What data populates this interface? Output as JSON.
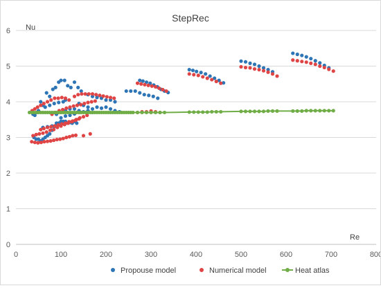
{
  "chart_data": {
    "type": "scatter",
    "title": "StepRec",
    "xlabel": "Re",
    "ylabel": "Nu",
    "xlim": [
      0,
      800
    ],
    "ylim": [
      0,
      6
    ],
    "xticks": [
      0,
      100,
      200,
      300,
      400,
      500,
      600,
      700,
      800
    ],
    "yticks": [
      0,
      1,
      2,
      3,
      4,
      5,
      6
    ],
    "grid": true,
    "legend_position": "bottom",
    "series": [
      {
        "name": "Propouse model",
        "color": "#2e75b6",
        "marker": "circle",
        "points": [
          [
            38,
            3.65
          ],
          [
            42,
            3.62
          ],
          [
            46,
            3.7
          ],
          [
            50,
            3.75
          ],
          [
            55,
            4.0
          ],
          [
            60,
            3.9
          ],
          [
            68,
            4.25
          ],
          [
            75,
            4.15
          ],
          [
            82,
            4.35
          ],
          [
            88,
            4.4
          ],
          [
            95,
            4.55
          ],
          [
            100,
            4.6
          ],
          [
            108,
            4.6
          ],
          [
            115,
            4.45
          ],
          [
            122,
            4.4
          ],
          [
            130,
            4.55
          ],
          [
            138,
            4.4
          ],
          [
            145,
            4.3
          ],
          [
            40,
            3.0
          ],
          [
            45,
            2.95
          ],
          [
            50,
            2.95
          ],
          [
            55,
            2.9
          ],
          [
            60,
            2.95
          ],
          [
            65,
            3.0
          ],
          [
            70,
            3.05
          ],
          [
            75,
            3.1
          ],
          [
            80,
            3.2
          ],
          [
            85,
            3.3
          ],
          [
            90,
            3.35
          ],
          [
            95,
            3.4
          ],
          [
            100,
            3.45
          ],
          [
            105,
            3.45
          ],
          [
            110,
            3.45
          ],
          [
            115,
            3.4
          ],
          [
            120,
            3.42
          ],
          [
            125,
            3.4
          ],
          [
            130,
            3.45
          ],
          [
            135,
            3.4
          ],
          [
            60,
            3.28
          ],
          [
            70,
            3.3
          ],
          [
            80,
            3.32
          ],
          [
            90,
            3.4
          ],
          [
            100,
            3.55
          ],
          [
            110,
            3.6
          ],
          [
            120,
            3.62
          ],
          [
            130,
            3.66
          ],
          [
            140,
            3.7
          ],
          [
            65,
            3.85
          ],
          [
            75,
            3.9
          ],
          [
            85,
            3.95
          ],
          [
            95,
            3.98
          ],
          [
            105,
            4.0
          ],
          [
            110,
            4.05
          ],
          [
            90,
            3.65
          ],
          [
            100,
            3.7
          ],
          [
            110,
            3.75
          ],
          [
            120,
            3.8
          ],
          [
            130,
            3.8
          ],
          [
            140,
            3.75
          ],
          [
            150,
            3.72
          ],
          [
            160,
            3.75
          ],
          [
            170,
            3.7
          ],
          [
            140,
            3.95
          ],
          [
            150,
            3.9
          ],
          [
            160,
            3.85
          ],
          [
            170,
            3.8
          ],
          [
            180,
            3.85
          ],
          [
            190,
            3.82
          ],
          [
            200,
            3.85
          ],
          [
            210,
            3.8
          ],
          [
            220,
            3.75
          ],
          [
            230,
            3.72
          ],
          [
            160,
            4.2
          ],
          [
            170,
            4.15
          ],
          [
            180,
            4.12
          ],
          [
            190,
            4.1
          ],
          [
            200,
            4.05
          ],
          [
            210,
            4.05
          ],
          [
            220,
            4.0
          ],
          [
            245,
            4.3
          ],
          [
            255,
            4.3
          ],
          [
            265,
            4.3
          ],
          [
            275,
            4.25
          ],
          [
            285,
            4.2
          ],
          [
            295,
            4.18
          ],
          [
            305,
            4.15
          ],
          [
            315,
            4.1
          ],
          [
            275,
            4.6
          ],
          [
            282,
            4.58
          ],
          [
            290,
            4.55
          ],
          [
            298,
            4.52
          ],
          [
            306,
            4.47
          ],
          [
            314,
            4.42
          ],
          [
            322,
            4.35
          ],
          [
            330,
            4.3
          ],
          [
            338,
            4.26
          ],
          [
            385,
            4.9
          ],
          [
            393,
            4.88
          ],
          [
            401,
            4.85
          ],
          [
            411,
            4.82
          ],
          [
            421,
            4.78
          ],
          [
            431,
            4.72
          ],
          [
            441,
            4.66
          ],
          [
            451,
            4.6
          ],
          [
            461,
            4.53
          ],
          [
            500,
            5.14
          ],
          [
            510,
            5.12
          ],
          [
            520,
            5.08
          ],
          [
            530,
            5.05
          ],
          [
            540,
            5.0
          ],
          [
            550,
            4.95
          ],
          [
            560,
            4.9
          ],
          [
            570,
            4.84
          ],
          [
            615,
            5.36
          ],
          [
            625,
            5.33
          ],
          [
            635,
            5.3
          ],
          [
            645,
            5.26
          ],
          [
            655,
            5.21
          ],
          [
            665,
            5.15
          ],
          [
            675,
            5.09
          ],
          [
            685,
            5.02
          ],
          [
            695,
            4.95
          ]
        ]
      },
      {
        "name": "Numerical model",
        "color": "#e04545",
        "marker": "circle",
        "points": [
          [
            36,
            3.75
          ],
          [
            42,
            3.8
          ],
          [
            48,
            3.85
          ],
          [
            55,
            3.9
          ],
          [
            62,
            3.95
          ],
          [
            70,
            4.0
          ],
          [
            78,
            4.05
          ],
          [
            86,
            4.1
          ],
          [
            94,
            4.1
          ],
          [
            102,
            4.12
          ],
          [
            110,
            4.1
          ],
          [
            118,
            4.05
          ],
          [
            38,
            3.05
          ],
          [
            45,
            3.08
          ],
          [
            52,
            3.1
          ],
          [
            60,
            3.12
          ],
          [
            68,
            3.15
          ],
          [
            76,
            3.2
          ],
          [
            84,
            3.22
          ],
          [
            92,
            3.28
          ],
          [
            100,
            3.32
          ],
          [
            108,
            3.36
          ],
          [
            116,
            3.4
          ],
          [
            124,
            3.44
          ],
          [
            132,
            3.48
          ],
          [
            140,
            3.52
          ],
          [
            35,
            2.88
          ],
          [
            42,
            2.86
          ],
          [
            49,
            2.85
          ],
          [
            56,
            2.86
          ],
          [
            63,
            2.88
          ],
          [
            70,
            2.89
          ],
          [
            77,
            2.9
          ],
          [
            84,
            2.92
          ],
          [
            91,
            2.94
          ],
          [
            98,
            2.95
          ],
          [
            105,
            2.97
          ],
          [
            112,
            3.0
          ],
          [
            119,
            3.02
          ],
          [
            126,
            3.05
          ],
          [
            133,
            3.06
          ],
          [
            55,
            3.22
          ],
          [
            62,
            3.25
          ],
          [
            70,
            3.28
          ],
          [
            78,
            3.3
          ],
          [
            86,
            3.32
          ],
          [
            94,
            3.35
          ],
          [
            102,
            3.38
          ],
          [
            110,
            3.4
          ],
          [
            118,
            3.44
          ],
          [
            126,
            3.46
          ],
          [
            134,
            3.5
          ],
          [
            142,
            3.55
          ],
          [
            150,
            3.58
          ],
          [
            158,
            3.62
          ],
          [
            80,
            3.65
          ],
          [
            88,
            3.7
          ],
          [
            96,
            3.75
          ],
          [
            104,
            3.78
          ],
          [
            112,
            3.82
          ],
          [
            120,
            3.85
          ],
          [
            128,
            3.88
          ],
          [
            136,
            3.9
          ],
          [
            144,
            3.92
          ],
          [
            152,
            3.95
          ],
          [
            160,
            3.98
          ],
          [
            168,
            4.0
          ],
          [
            176,
            4.02
          ],
          [
            130,
            4.15
          ],
          [
            138,
            4.2
          ],
          [
            146,
            4.22
          ],
          [
            154,
            4.22
          ],
          [
            162,
            4.22
          ],
          [
            170,
            4.22
          ],
          [
            178,
            4.2
          ],
          [
            186,
            4.18
          ],
          [
            194,
            4.16
          ],
          [
            202,
            4.14
          ],
          [
            210,
            4.12
          ],
          [
            218,
            4.1
          ],
          [
            165,
            3.1
          ],
          [
            150,
            3.05
          ],
          [
            270,
            3.7
          ],
          [
            280,
            3.72
          ],
          [
            290,
            3.72
          ],
          [
            300,
            3.74
          ],
          [
            310,
            3.72
          ],
          [
            320,
            3.7
          ],
          [
            270,
            4.52
          ],
          [
            278,
            4.5
          ],
          [
            286,
            4.48
          ],
          [
            294,
            4.46
          ],
          [
            302,
            4.44
          ],
          [
            310,
            4.42
          ],
          [
            318,
            4.38
          ],
          [
            326,
            4.34
          ],
          [
            334,
            4.3
          ],
          [
            385,
            4.78
          ],
          [
            395,
            4.76
          ],
          [
            405,
            4.74
          ],
          [
            415,
            4.7
          ],
          [
            425,
            4.66
          ],
          [
            435,
            4.62
          ],
          [
            445,
            4.57
          ],
          [
            455,
            4.52
          ],
          [
            500,
            4.98
          ],
          [
            510,
            4.96
          ],
          [
            520,
            4.95
          ],
          [
            530,
            4.92
          ],
          [
            540,
            4.9
          ],
          [
            550,
            4.87
          ],
          [
            560,
            4.83
          ],
          [
            570,
            4.78
          ],
          [
            580,
            4.72
          ],
          [
            615,
            5.17
          ],
          [
            625,
            5.15
          ],
          [
            635,
            5.13
          ],
          [
            645,
            5.11
          ],
          [
            655,
            5.08
          ],
          [
            665,
            5.05
          ],
          [
            675,
            5.0
          ],
          [
            685,
            4.96
          ],
          [
            695,
            4.91
          ],
          [
            705,
            4.86
          ]
        ]
      },
      {
        "name": "Heat atlas",
        "color": "#70ad47",
        "marker": "circle-line",
        "points": [
          [
            30,
            3.7
          ],
          [
            35,
            3.7
          ],
          [
            40,
            3.7
          ],
          [
            45,
            3.7
          ],
          [
            50,
            3.7
          ],
          [
            55,
            3.7
          ],
          [
            60,
            3.7
          ],
          [
            65,
            3.7
          ],
          [
            70,
            3.7
          ],
          [
            75,
            3.7
          ],
          [
            80,
            3.7
          ],
          [
            85,
            3.7
          ],
          [
            90,
            3.7
          ],
          [
            95,
            3.7
          ],
          [
            100,
            3.7
          ],
          [
            105,
            3.7
          ],
          [
            110,
            3.7
          ],
          [
            115,
            3.7
          ],
          [
            120,
            3.7
          ],
          [
            125,
            3.7
          ],
          [
            130,
            3.7
          ],
          [
            135,
            3.7
          ],
          [
            140,
            3.7
          ],
          [
            145,
            3.7
          ],
          [
            150,
            3.7
          ],
          [
            155,
            3.7
          ],
          [
            160,
            3.7
          ],
          [
            165,
            3.7
          ],
          [
            170,
            3.7
          ],
          [
            175,
            3.7
          ],
          [
            180,
            3.7
          ],
          [
            185,
            3.7
          ],
          [
            190,
            3.7
          ],
          [
            195,
            3.7
          ],
          [
            200,
            3.7
          ],
          [
            205,
            3.7
          ],
          [
            210,
            3.7
          ],
          [
            215,
            3.7
          ],
          [
            220,
            3.7
          ],
          [
            225,
            3.7
          ],
          [
            230,
            3.7
          ],
          [
            235,
            3.7
          ],
          [
            240,
            3.7
          ],
          [
            245,
            3.7
          ],
          [
            250,
            3.7
          ],
          [
            255,
            3.7
          ],
          [
            260,
            3.7
          ],
          [
            270,
            3.7
          ],
          [
            280,
            3.7
          ],
          [
            290,
            3.7
          ],
          [
            300,
            3.7
          ],
          [
            310,
            3.7
          ],
          [
            320,
            3.7
          ],
          [
            330,
            3.7
          ],
          [
            385,
            3.71
          ],
          [
            395,
            3.71
          ],
          [
            405,
            3.71
          ],
          [
            415,
            3.71
          ],
          [
            425,
            3.71
          ],
          [
            435,
            3.72
          ],
          [
            445,
            3.72
          ],
          [
            455,
            3.72
          ],
          [
            500,
            3.73
          ],
          [
            510,
            3.73
          ],
          [
            520,
            3.73
          ],
          [
            530,
            3.73
          ],
          [
            540,
            3.73
          ],
          [
            550,
            3.73
          ],
          [
            560,
            3.74
          ],
          [
            570,
            3.74
          ],
          [
            580,
            3.74
          ],
          [
            615,
            3.74
          ],
          [
            625,
            3.74
          ],
          [
            635,
            3.74
          ],
          [
            645,
            3.75
          ],
          [
            655,
            3.75
          ],
          [
            665,
            3.75
          ],
          [
            675,
            3.75
          ],
          [
            685,
            3.75
          ],
          [
            695,
            3.75
          ],
          [
            705,
            3.75
          ]
        ]
      }
    ]
  }
}
